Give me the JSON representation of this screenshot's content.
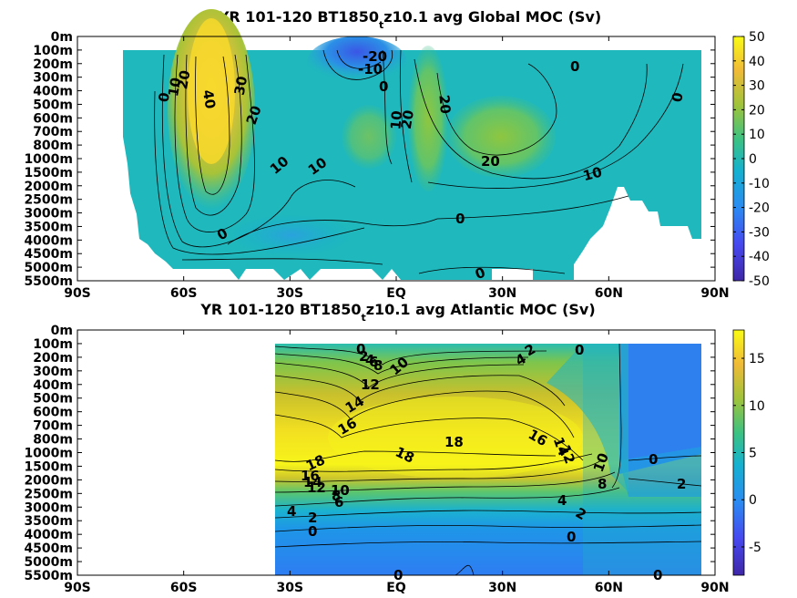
{
  "chart_data": [
    {
      "type": "heatmap",
      "title": "YR 101-120 BT1850_tz10.1 avg  Global MOC (Sv)",
      "title_parts": {
        "pre": "YR 101-120 BT1850",
        "sub": "t",
        "post": "z10.1 avg  Global MOC (Sv)"
      },
      "x_ticks": [
        "90S",
        "60S",
        "30S",
        "EQ",
        "30N",
        "60N",
        "90N"
      ],
      "x_tick_values": [
        -90,
        -60,
        -30,
        0,
        30,
        60,
        90
      ],
      "xlim": [
        -90,
        90
      ],
      "y_ticks": [
        "0m",
        "100m",
        "200m",
        "300m",
        "400m",
        "500m",
        "600m",
        "700m",
        "800m",
        "1000m",
        "1500m",
        "2000m",
        "2500m",
        "3000m",
        "3500m",
        "4000m",
        "4500m",
        "5000m",
        "5500m"
      ],
      "colorbar": {
        "ticks": [
          "50",
          "40",
          "30",
          "20",
          "10",
          "0",
          "-10",
          "-20",
          "-30",
          "-40",
          "-50"
        ],
        "tick_values": [
          50,
          40,
          30,
          20,
          10,
          0,
          -10,
          -20,
          -30,
          -40,
          -50
        ],
        "range": [
          -50,
          50
        ]
      },
      "contour_labels": [
        {
          "text": "-20",
          "lat": 0,
          "depth": "100m"
        },
        {
          "text": "-10",
          "lat": -2,
          "depth": "200m"
        },
        {
          "text": "0",
          "lat": 34,
          "depth": "200m"
        },
        {
          "text": "0",
          "lat": -1,
          "depth": "300m"
        },
        {
          "text": "0",
          "lat": -67,
          "depth": "500m"
        },
        {
          "text": "10",
          "lat": -64,
          "depth": "400m"
        },
        {
          "text": "20",
          "lat": -61,
          "depth": "300m"
        },
        {
          "text": "40",
          "lat": -51,
          "depth": "500m"
        },
        {
          "text": "30",
          "lat": -44,
          "depth": "300m"
        },
        {
          "text": "20",
          "lat": -42,
          "depth": "600m"
        },
        {
          "text": "10",
          "lat": -34,
          "depth": "1000m"
        },
        {
          "text": "10",
          "lat": -26,
          "depth": "1000m"
        },
        {
          "text": "10",
          "lat": 0,
          "depth": "600m"
        },
        {
          "text": "20",
          "lat": 2,
          "depth": "600m"
        },
        {
          "text": "20",
          "lat": 14,
          "depth": "500m"
        },
        {
          "text": "20",
          "lat": 26,
          "depth": "1000m"
        },
        {
          "text": "10",
          "lat": 55,
          "depth": "1500m"
        },
        {
          "text": "0",
          "lat": 78,
          "depth": "400m"
        },
        {
          "text": "0",
          "lat": 17,
          "depth": "3000m"
        },
        {
          "text": "0",
          "lat": -51,
          "depth": "4000m"
        },
        {
          "text": "0",
          "lat": 23,
          "depth": "5000m"
        }
      ]
    },
    {
      "type": "heatmap",
      "title": "YR 101-120 BT1850_tz10.1 avg  Atlantic MOC (Sv)",
      "title_parts": {
        "pre": "YR 101-120 BT1850",
        "sub": "t",
        "post": "z10.1 avg  Atlantic MOC (Sv)"
      },
      "x_ticks": [
        "90S",
        "60S",
        "30S",
        "EQ",
        "30N",
        "60N",
        "90N"
      ],
      "x_tick_values": [
        -90,
        -60,
        -30,
        0,
        30,
        60,
        90
      ],
      "xlim": [
        -90,
        90
      ],
      "y_ticks": [
        "0m",
        "100m",
        "200m",
        "300m",
        "400m",
        "500m",
        "600m",
        "700m",
        "800m",
        "1000m",
        "1500m",
        "2000m",
        "2500m",
        "3000m",
        "3500m",
        "4000m",
        "4500m",
        "5000m",
        "5500m"
      ],
      "colorbar": {
        "ticks": [
          "15",
          "10",
          "5",
          "0",
          "-5"
        ],
        "tick_values": [
          15,
          10,
          5,
          0,
          -5
        ],
        "range": [
          -8,
          18
        ]
      },
      "contour_labels": [
        {
          "text": "0",
          "lat": -10,
          "depth": "100m"
        },
        {
          "text": "2",
          "lat": -9,
          "depth": "200m"
        },
        {
          "text": "4",
          "lat": -8,
          "depth": "200m"
        },
        {
          "text": "6",
          "lat": -7,
          "depth": "200m"
        },
        {
          "text": "8",
          "lat": -6,
          "depth": "300m"
        },
        {
          "text": "10",
          "lat": 1,
          "depth": "300m"
        },
        {
          "text": "12",
          "lat": -7,
          "depth": "500m"
        },
        {
          "text": "14",
          "lat": -13,
          "depth": "600m"
        },
        {
          "text": "16",
          "lat": -15,
          "depth": "800m"
        },
        {
          "text": "18",
          "lat": 17,
          "depth": "1000m"
        },
        {
          "text": "18",
          "lat": 2,
          "depth": "1500m"
        },
        {
          "text": "18",
          "lat": -24,
          "depth": "1500m"
        },
        {
          "text": "16",
          "lat": -26,
          "depth": "2000m"
        },
        {
          "text": "14",
          "lat": -25,
          "depth": "2500m"
        },
        {
          "text": "12",
          "lat": -23,
          "depth": "2500m"
        },
        {
          "text": "10",
          "lat": -17,
          "depth": "2500m"
        },
        {
          "text": "8",
          "lat": -19,
          "depth": "3000m"
        },
        {
          "text": "6",
          "lat": -18,
          "depth": "3000m"
        },
        {
          "text": "4",
          "lat": -29,
          "depth": "3500m"
        },
        {
          "text": "2",
          "lat": -24,
          "depth": "3500m"
        },
        {
          "text": "0",
          "lat": -24,
          "depth": "4000m"
        },
        {
          "text": "2",
          "lat": 37,
          "depth": "100m"
        },
        {
          "text": "4",
          "lat": 34,
          "depth": "200m"
        },
        {
          "text": "0",
          "lat": 50,
          "depth": "100m"
        },
        {
          "text": "16",
          "lat": 40,
          "depth": "1000m"
        },
        {
          "text": "14",
          "lat": 44,
          "depth": "1000m"
        },
        {
          "text": "12",
          "lat": 46,
          "depth": "1500m"
        },
        {
          "text": "10",
          "lat": 55,
          "depth": "1500m"
        },
        {
          "text": "8",
          "lat": 55,
          "depth": "2500m"
        },
        {
          "text": "4",
          "lat": 44,
          "depth": "3000m"
        },
        {
          "text": "2",
          "lat": 48,
          "depth": "3500m"
        },
        {
          "text": "0",
          "lat": 47,
          "depth": "4000m"
        },
        {
          "text": "0",
          "lat": 70,
          "depth": "1500m"
        },
        {
          "text": "2",
          "lat": 81,
          "depth": "2500m"
        },
        {
          "text": "0",
          "lat": 1,
          "depth": "5500m"
        },
        {
          "text": "0",
          "lat": 70,
          "depth": "5500m"
        }
      ]
    }
  ]
}
